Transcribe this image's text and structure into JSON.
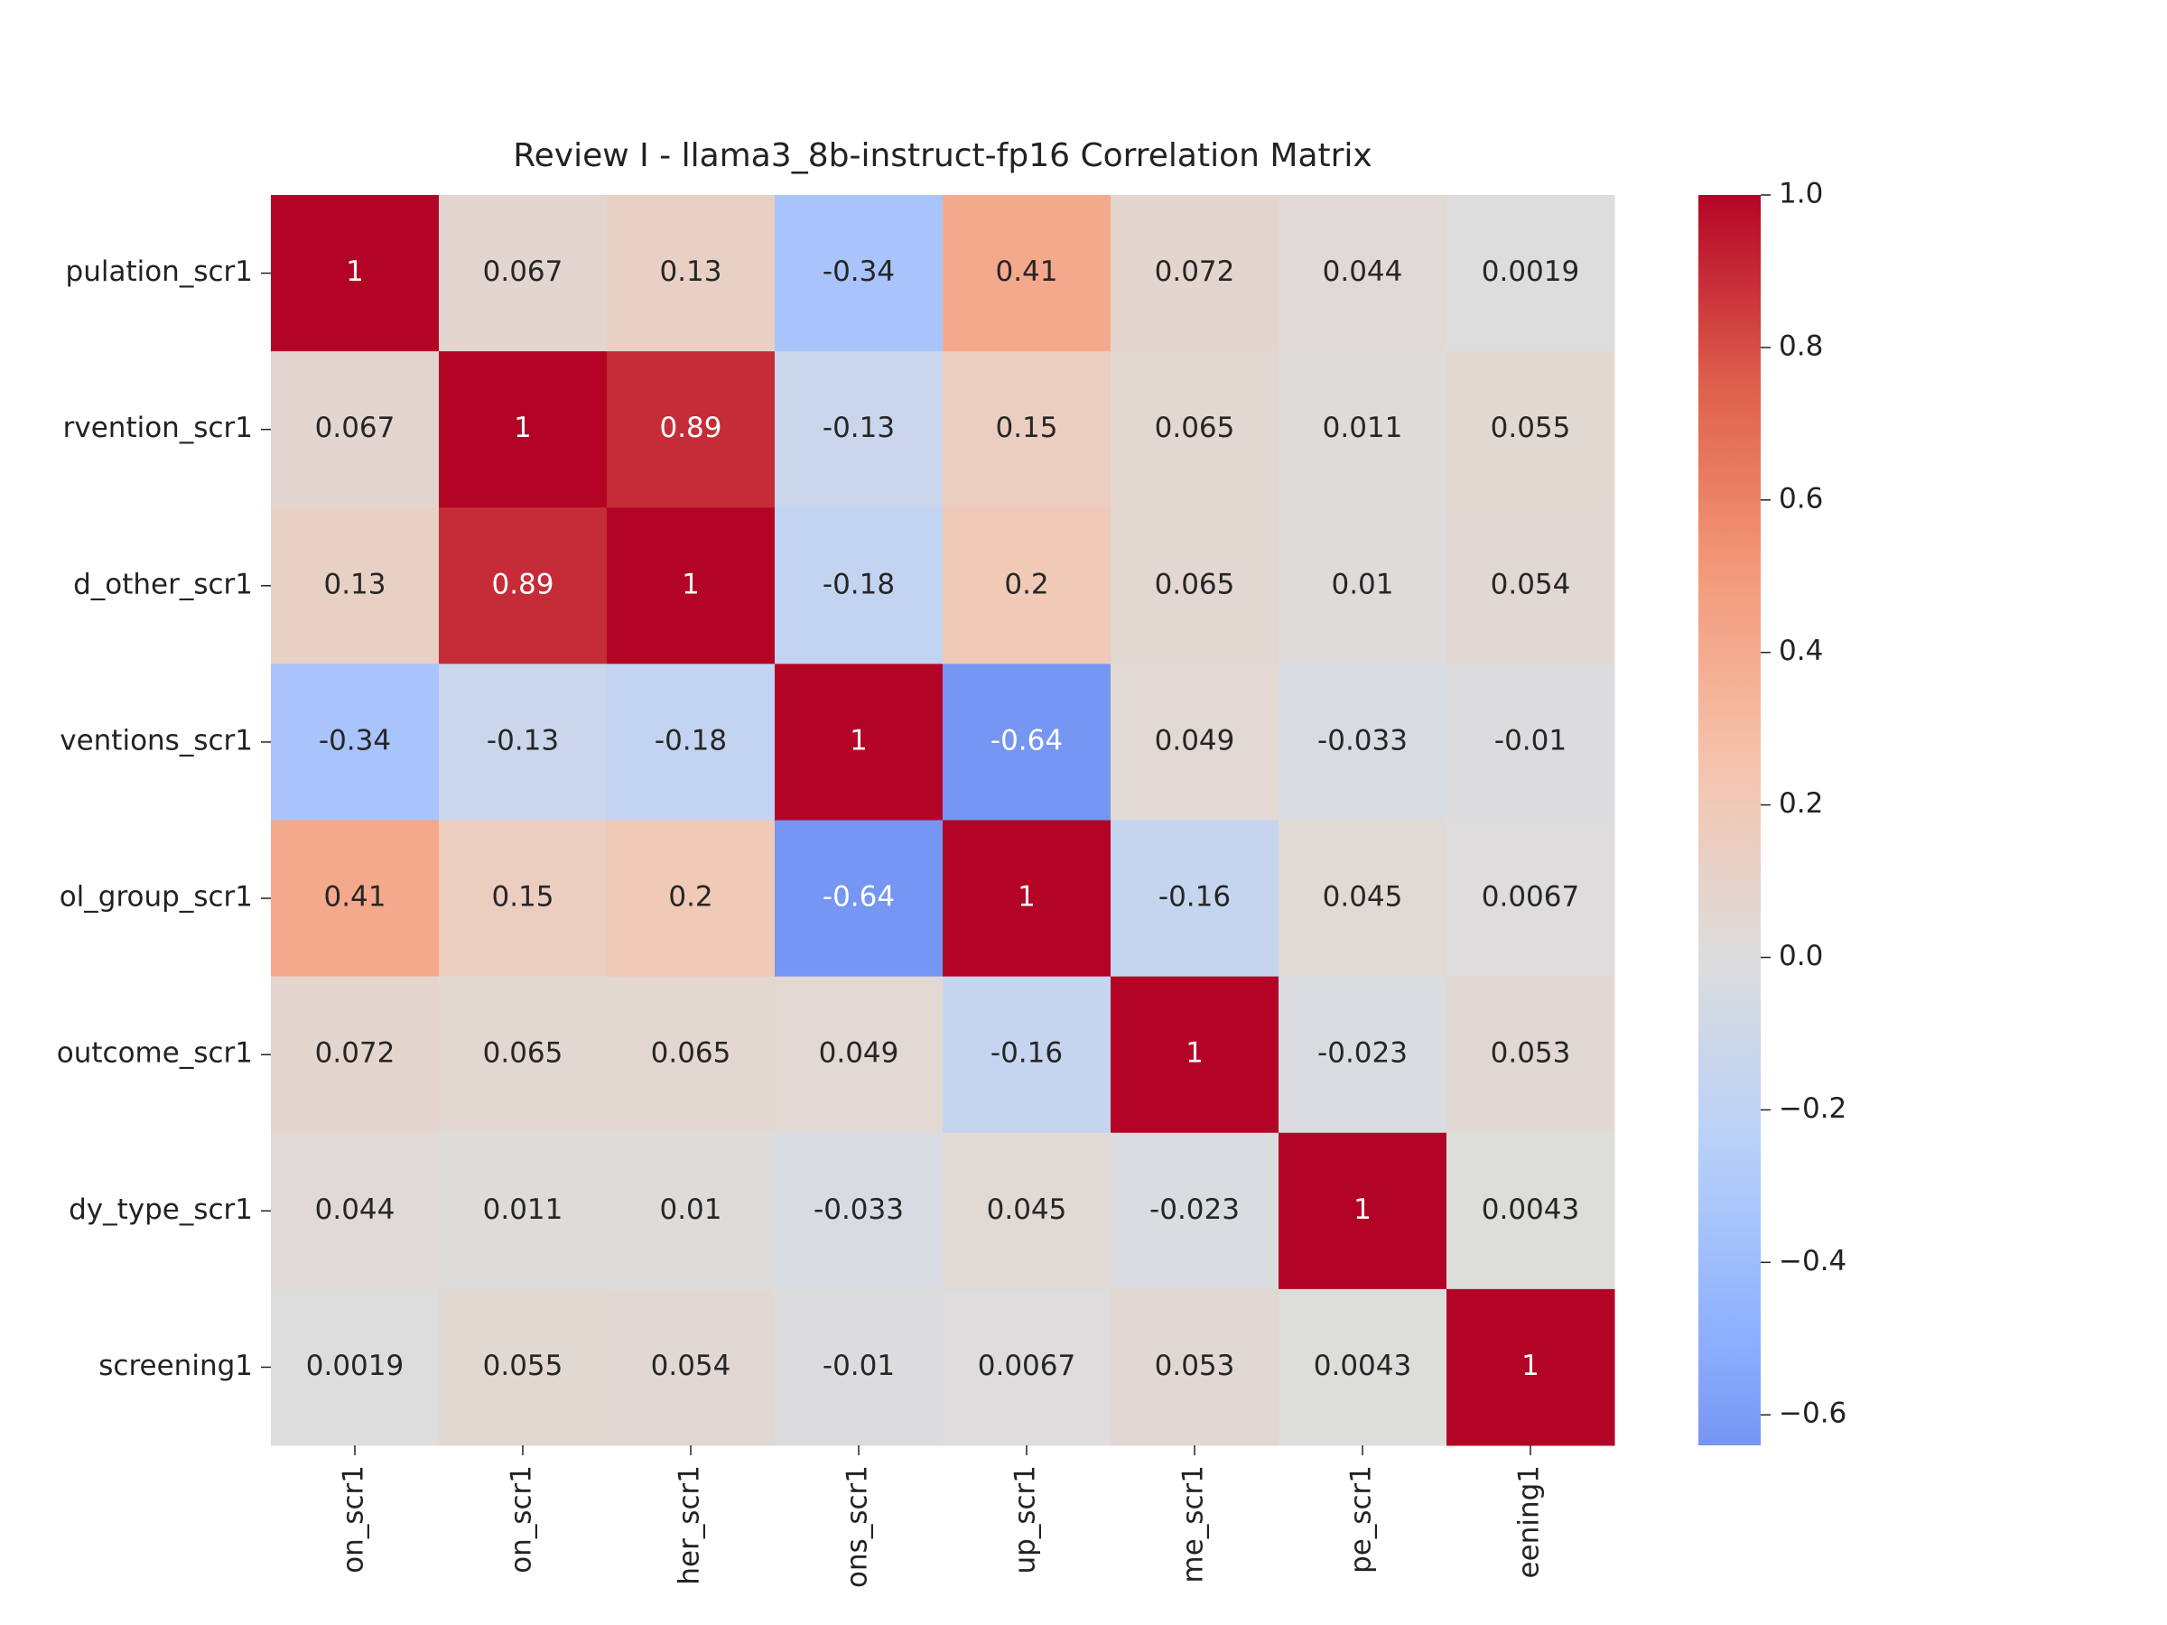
{
  "chart_data": {
    "type": "heatmap",
    "title": "Review I - llama3_8b-instruct-fp16 Correlation Matrix",
    "row_labels": [
      "pulation_scr1",
      "rvention_scr1",
      "d_other_scr1",
      "ventions_scr1",
      "ol_group_scr1",
      "outcome_scr1",
      "dy_type_scr1",
      "screening1"
    ],
    "col_labels": [
      "on_scr1",
      "on_scr1",
      "her_scr1",
      "ons_scr1",
      "up_scr1",
      "me_scr1",
      "pe_scr1",
      "eening1"
    ],
    "values": [
      [
        1,
        0.067,
        0.13,
        -0.34,
        0.41,
        0.072,
        0.044,
        0.0019
      ],
      [
        0.067,
        1,
        0.89,
        -0.13,
        0.15,
        0.065,
        0.011,
        0.055
      ],
      [
        0.13,
        0.89,
        1,
        -0.18,
        0.2,
        0.065,
        0.01,
        0.054
      ],
      [
        -0.34,
        -0.13,
        -0.18,
        1,
        -0.64,
        0.049,
        -0.033,
        -0.01
      ],
      [
        0.41,
        0.15,
        0.2,
        -0.64,
        1,
        -0.16,
        0.045,
        0.0067
      ],
      [
        0.072,
        0.065,
        0.065,
        0.049,
        -0.16,
        1,
        -0.023,
        0.053
      ],
      [
        0.044,
        0.011,
        0.01,
        -0.033,
        0.045,
        -0.023,
        1,
        0.0043
      ],
      [
        0.0019,
        0.055,
        0.054,
        -0.01,
        0.0067,
        0.053,
        0.0043,
        1
      ]
    ],
    "cmap": "coolwarm",
    "center": 0,
    "zlim": [
      -0.64,
      1
    ],
    "zticks": [
      {
        "value": 1.0,
        "label": "1.0"
      },
      {
        "value": 0.8,
        "label": "0.8"
      },
      {
        "value": 0.6,
        "label": "0.6"
      },
      {
        "value": 0.4,
        "label": "0.4"
      },
      {
        "value": 0.2,
        "label": "0.2"
      },
      {
        "value": 0.0,
        "label": "0.0"
      },
      {
        "value": -0.2,
        "label": "−0.2"
      },
      {
        "value": -0.4,
        "label": "−0.4"
      },
      {
        "value": -0.6,
        "label": "−0.6"
      }
    ]
  }
}
